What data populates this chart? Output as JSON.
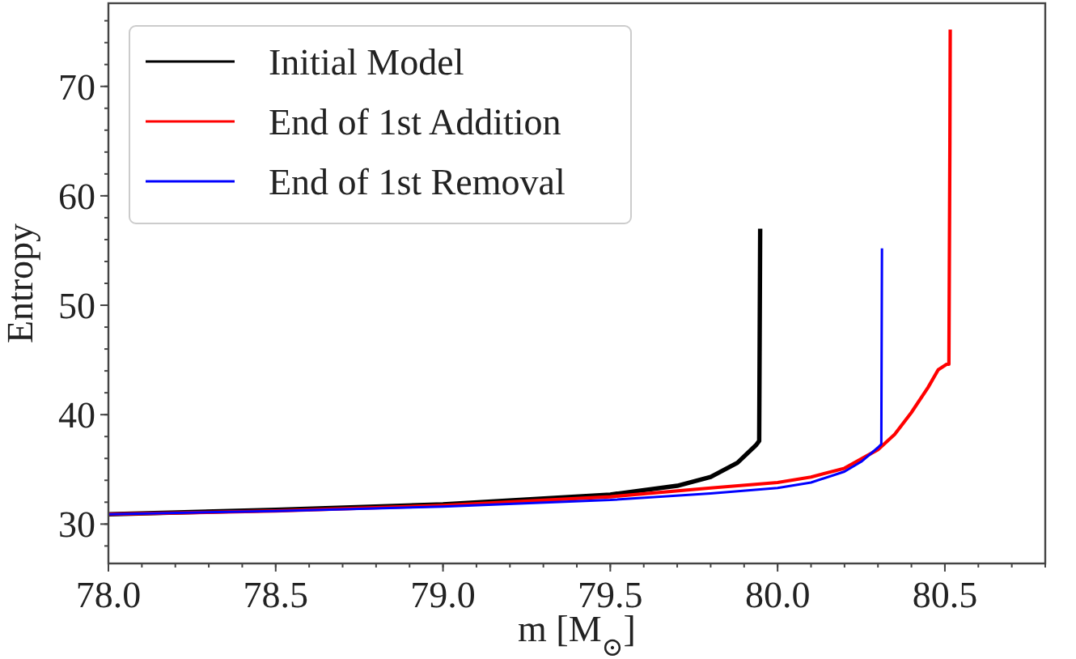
{
  "chart_data": {
    "type": "line",
    "xlabel": "m [M$_{⊙}$]",
    "ylabel": "Entropy",
    "xlim": [
      78.0,
      80.8
    ],
    "ylim": [
      26.4,
      77.6
    ],
    "xticks": [
      {
        "value": 78.0,
        "label": "78.0"
      },
      {
        "value": 78.5,
        "label": "78.5"
      },
      {
        "value": 79.0,
        "label": "79.0"
      },
      {
        "value": 79.5,
        "label": "79.5"
      },
      {
        "value": 80.0,
        "label": "80.0"
      },
      {
        "value": 80.5,
        "label": "80.5"
      }
    ],
    "yticks": [
      30,
      40,
      50,
      60,
      70
    ],
    "legend": "top left",
    "grid": false,
    "marker": "none",
    "line_style": "solid",
    "series": [
      {
        "name": "Initial Model",
        "color": "#000000",
        "x": [
          78,
          78.5,
          79,
          79.5,
          79.7,
          79.8,
          79.88,
          79.935,
          79.945,
          79.948
        ],
        "values": [
          30.9,
          31.3,
          31.8,
          32.7,
          33.5,
          34.3,
          35.6,
          37.2,
          37.6,
          57.0
        ]
      },
      {
        "name": "End of 1st Addition",
        "color": "#ff0000",
        "x": [
          78,
          78.5,
          79,
          79.5,
          79.8,
          80,
          80.1,
          80.2,
          80.3,
          80.35,
          80.4,
          80.45,
          80.48,
          80.505,
          80.512,
          80.515,
          80.516
        ],
        "values": [
          30.9,
          31.2,
          31.7,
          32.5,
          33.3,
          33.8,
          34.3,
          35.1,
          36.8,
          38.2,
          40.2,
          42.5,
          44.1,
          44.6,
          44.6,
          65,
          75.2
        ]
      },
      {
        "name": "End of 1st Removal",
        "color": "#0000ff",
        "x": [
          78,
          78.5,
          79,
          79.5,
          79.8,
          80,
          80.1,
          80.2,
          80.25,
          80.3,
          80.31,
          80.312
        ],
        "values": [
          30.9,
          31.2,
          31.6,
          32.2,
          32.8,
          33.3,
          33.8,
          34.8,
          35.7,
          37.0,
          37.3,
          55.2
        ]
      }
    ]
  }
}
